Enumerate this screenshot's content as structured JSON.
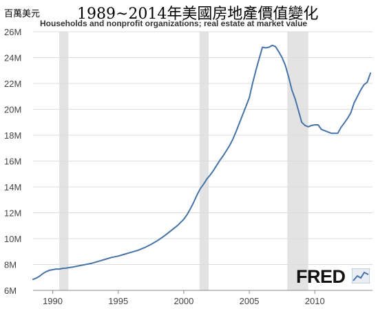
{
  "header": {
    "unit": "百萬美元",
    "title": "1989~2014年美國房地產價值變化",
    "subtitle": "Households and nonprofit organizations; real estate at market value"
  },
  "logo": {
    "text": "FRED",
    "icon": "fred-chart-icon"
  },
  "colors": {
    "line": "#4572a7",
    "recession": "#e3e3e3",
    "grid": "#dcdcdc",
    "axis": "#888888"
  },
  "chart_data": {
    "type": "line",
    "title": "1989~2014年美國房地產價值變化",
    "subtitle": "Households and nonprofit organizations; real estate at market value",
    "xlabel": "",
    "ylabel": "百萬美元",
    "xlim": [
      1988.5,
      2014.4
    ],
    "ylim": [
      6,
      26
    ],
    "y_ticks": [
      6,
      8,
      10,
      12,
      14,
      16,
      18,
      20,
      22,
      24,
      26
    ],
    "y_tick_labels": [
      "6M",
      "8M",
      "10M",
      "12M",
      "14M",
      "16M",
      "18M",
      "20M",
      "22M",
      "24M",
      "26M"
    ],
    "x_ticks": [
      1990,
      1995,
      2000,
      2005,
      2010
    ],
    "x_tick_labels": [
      "1990",
      "1995",
      "2000",
      "2005",
      "2010"
    ],
    "grid": true,
    "recessions": [
      [
        1990.5,
        1991.2
      ],
      [
        2001.2,
        2001.9
      ],
      [
        2007.9,
        2009.5
      ]
    ],
    "series": [
      {
        "x": [
          1988.5,
          1988.75,
          1989.0,
          1989.25,
          1989.5,
          1989.75,
          1990.0,
          1990.25,
          1990.5,
          1990.75,
          1991.0,
          1991.5,
          1992.0,
          1992.5,
          1993.0,
          1993.5,
          1994.0,
          1994.5,
          1995.0,
          1995.5,
          1996.0,
          1996.5,
          1997.0,
          1997.5,
          1998.0,
          1998.5,
          1999.0,
          1999.5,
          2000.0,
          2000.25,
          2000.5,
          2000.75,
          2001.0,
          2001.25,
          2001.5,
          2001.75,
          2002.0,
          2002.25,
          2002.5,
          2002.75,
          2003.0,
          2003.25,
          2003.5,
          2003.75,
          2004.0,
          2004.5,
          2005.0,
          2005.25,
          2005.5,
          2005.75,
          2006.0,
          2006.25,
          2006.5,
          2006.75,
          2007.0,
          2007.25,
          2007.5,
          2007.75,
          2008.0,
          2008.25,
          2008.5,
          2008.75,
          2009.0,
          2009.25,
          2009.5,
          2009.75,
          2010.0,
          2010.25,
          2010.5,
          2010.75,
          2011.0,
          2011.25,
          2011.5,
          2011.75,
          2012.0,
          2012.25,
          2012.5,
          2012.75,
          2013.0,
          2013.25,
          2013.5,
          2013.75,
          2014.0,
          2014.25
        ],
        "y": [
          6.85,
          6.95,
          7.1,
          7.3,
          7.45,
          7.55,
          7.6,
          7.65,
          7.65,
          7.7,
          7.72,
          7.8,
          7.9,
          8.0,
          8.1,
          8.25,
          8.4,
          8.55,
          8.65,
          8.8,
          8.95,
          9.1,
          9.3,
          9.55,
          9.85,
          10.2,
          10.6,
          11.0,
          11.5,
          11.85,
          12.3,
          12.8,
          13.35,
          13.85,
          14.2,
          14.6,
          14.9,
          15.25,
          15.65,
          16.05,
          16.4,
          16.8,
          17.2,
          17.7,
          18.3,
          19.6,
          20.9,
          22.0,
          23.0,
          23.9,
          24.8,
          24.75,
          24.8,
          24.95,
          24.85,
          24.45,
          24.0,
          23.4,
          22.5,
          21.5,
          20.8,
          19.9,
          19.0,
          18.75,
          18.65,
          18.75,
          18.8,
          18.8,
          18.45,
          18.35,
          18.25,
          18.15,
          18.15,
          18.15,
          18.6,
          18.95,
          19.3,
          19.75,
          20.5,
          21.0,
          21.5,
          21.9,
          22.1,
          22.8
        ]
      }
    ]
  }
}
